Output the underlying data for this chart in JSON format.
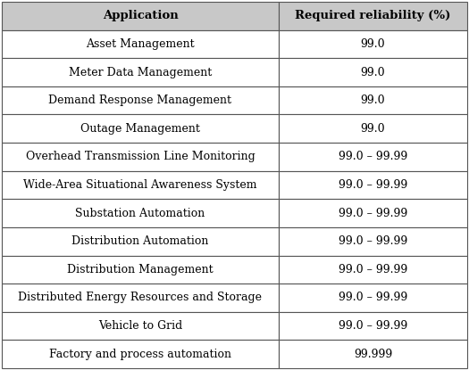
{
  "col_headers": [
    "Application",
    "Required reliability (%)"
  ],
  "rows": [
    [
      "Asset Management",
      "99.0"
    ],
    [
      "Meter Data Management",
      "99.0"
    ],
    [
      "Demand Response Management",
      "99.0"
    ],
    [
      "Outage Management",
      "99.0"
    ],
    [
      "Overhead Transmission Line Monitoring",
      "99.0 – 99.99"
    ],
    [
      "Wide-Area Situational Awareness System",
      "99.0 – 99.99"
    ],
    [
      "Substation Automation",
      "99.0 – 99.99"
    ],
    [
      "Distribution Automation",
      "99.0 – 99.99"
    ],
    [
      "Distribution Management",
      "99.0 – 99.99"
    ],
    [
      "Distributed Energy Resources and Storage",
      "99.0 – 99.99"
    ],
    [
      "Vehicle to Grid",
      "99.0 – 99.99"
    ],
    [
      "Factory and process automation",
      "99.999"
    ]
  ],
  "header_bg": "#c8c8c8",
  "row_bg": "#ffffff",
  "text_color": "#000000",
  "border_color": "#555555",
  "header_fontsize": 9.5,
  "body_fontsize": 9.0,
  "fig_width": 5.25,
  "fig_height": 4.15,
  "dpi": 100,
  "col_split": 0.595
}
